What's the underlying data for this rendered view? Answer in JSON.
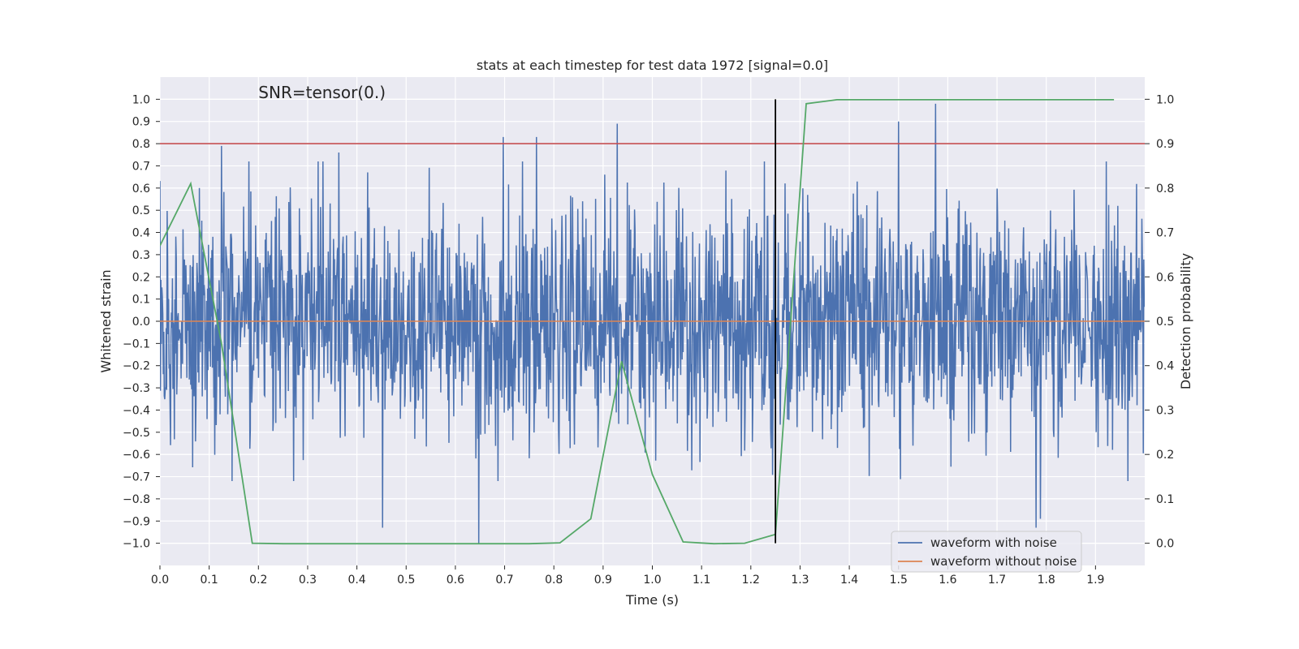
{
  "chart_data": {
    "type": "line",
    "title": "stats at each timestep for test data 1972 [signal=0.0]",
    "xlabel": "Time (s)",
    "ylabel": "Whitened strain",
    "y2label": "Detection probability",
    "annotation": "SNR=tensor(0.)",
    "xlim": [
      0.0,
      2.0
    ],
    "ylim": [
      -1.1,
      1.1
    ],
    "y2lim": [
      -0.05,
      1.05
    ],
    "xticks": [
      "0.0",
      "0.1",
      "0.2",
      "0.3",
      "0.4",
      "0.5",
      "0.6",
      "0.7",
      "0.8",
      "0.9",
      "1.0",
      "1.1",
      "1.2",
      "1.3",
      "1.4",
      "1.5",
      "1.6",
      "1.7",
      "1.8",
      "1.9"
    ],
    "yticks": [
      "1.0",
      "0.9",
      "0.8",
      "0.7",
      "0.6",
      "0.5",
      "0.4",
      "0.3",
      "0.2",
      "0.1",
      "0.0",
      "−0.1",
      "−0.2",
      "−0.3",
      "−0.4",
      "−0.5",
      "−0.6",
      "−0.7",
      "−0.8",
      "−0.9",
      "−1.0"
    ],
    "y2ticks": [
      "1.0",
      "0.9",
      "0.8",
      "0.7",
      "0.6",
      "0.5",
      "0.4",
      "0.3",
      "0.2",
      "0.1",
      "0.0"
    ],
    "series": [
      {
        "name": "waveform with noise",
        "color": "#4c72b0",
        "kind": "noise",
        "seed": 1972,
        "n_samples": 2048,
        "amplitude_std": 0.26,
        "peaks": [
          [
            0.125,
            0.79
          ],
          [
            0.363,
            0.76
          ],
          [
            0.697,
            0.83
          ],
          [
            0.765,
            0.83
          ],
          [
            0.929,
            0.89
          ],
          [
            1.5,
            0.9
          ],
          [
            1.575,
            0.98
          ],
          [
            0.647,
            -1.0
          ],
          [
            0.452,
            -0.93
          ],
          [
            1.779,
            -0.93
          ],
          [
            1.788,
            -0.89
          ]
        ]
      },
      {
        "name": "waveform without noise",
        "color": "#dd8452",
        "kind": "constant",
        "value": 0.0
      },
      {
        "name": "detection probability",
        "color": "#55a868",
        "axis": "right",
        "x": [
          0.0,
          0.0625,
          0.125,
          0.1875,
          0.25,
          0.3125,
          0.375,
          0.4375,
          0.5,
          0.5625,
          0.625,
          0.6875,
          0.75,
          0.8125,
          0.875,
          0.9375,
          1.0,
          1.0625,
          1.125,
          1.1875,
          1.25,
          1.3125,
          1.375,
          1.4375,
          1.5,
          1.5625,
          1.625,
          1.6875,
          1.75,
          1.8125,
          1.875,
          1.9375
        ],
        "y": [
          0.67,
          0.81,
          0.45,
          0.0,
          -0.001,
          -0.001,
          -0.001,
          -0.001,
          -0.001,
          -0.001,
          -0.001,
          -0.001,
          -0.001,
          0.001,
          0.055,
          0.41,
          0.155,
          0.003,
          -0.001,
          0.0,
          0.02,
          0.99,
          0.999,
          0.999,
          0.999,
          0.999,
          0.999,
          0.999,
          0.999,
          0.999,
          0.999,
          0.999
        ]
      }
    ],
    "threshold": {
      "value": 0.9,
      "axis": "right",
      "color": "#c44e52"
    },
    "vline": {
      "x": 1.25,
      "ymin": 0.0,
      "ymax": 1.0,
      "axis": "right",
      "color": "#000000"
    },
    "legend": {
      "position": "lower-right"
    }
  }
}
